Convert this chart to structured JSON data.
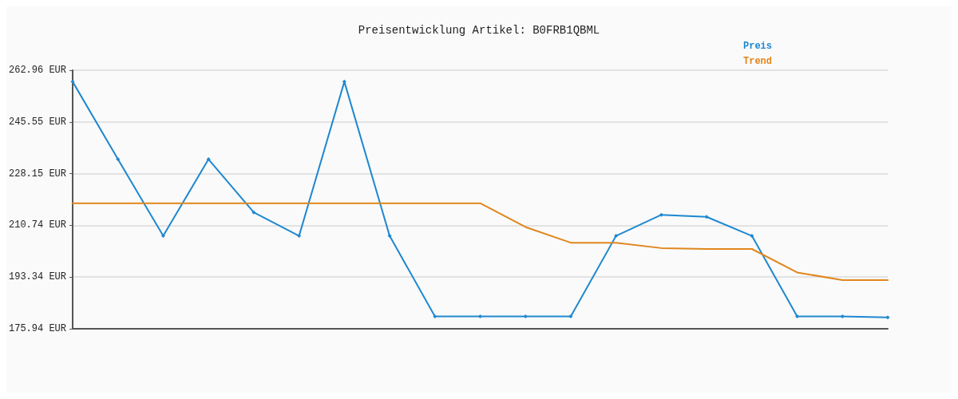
{
  "chart_data": {
    "type": "line",
    "title": "Preisentwicklung Artikel: B0FRB1QBML",
    "categories": [
      null,
      null,
      null,
      null,
      null,
      null,
      null,
      null,
      null,
      null,
      null,
      null,
      null,
      null,
      null,
      null,
      null,
      null,
      null
    ],
    "series": [
      {
        "name": "Preis",
        "color": "#1e88d0",
        "marker": "diamond",
        "values": [
          259.1,
          233.0,
          207.2,
          233.0,
          215.1,
          207.2,
          259.1,
          207.2,
          180.1,
          180.1,
          180.1,
          180.1,
          207.2,
          214.3,
          213.6,
          207.2,
          180.1,
          180.1,
          179.8
        ]
      },
      {
        "name": "Trend",
        "color": "#e0861c",
        "marker": "none",
        "values": [
          218.2,
          218.2,
          218.2,
          218.2,
          218.2,
          218.2,
          218.2,
          218.2,
          218.2,
          218.2,
          210.2,
          204.9,
          204.9,
          203.1,
          202.8,
          202.8,
          194.9,
          192.3,
          192.3
        ]
      }
    ],
    "ylim": [
      175.94,
      262.96
    ],
    "yticks": [
      {
        "value": 175.94,
        "label": "175.94 EUR"
      },
      {
        "value": 193.34,
        "label": "193.34 EUR"
      },
      {
        "value": 210.74,
        "label": "210.74 EUR"
      },
      {
        "value": 228.15,
        "label": "228.15 EUR"
      },
      {
        "value": 245.55,
        "label": "245.55 EUR"
      },
      {
        "value": 262.96,
        "label": "262.96 EUR"
      }
    ],
    "grid": "y",
    "legend": "top right",
    "line_style": "solid"
  }
}
